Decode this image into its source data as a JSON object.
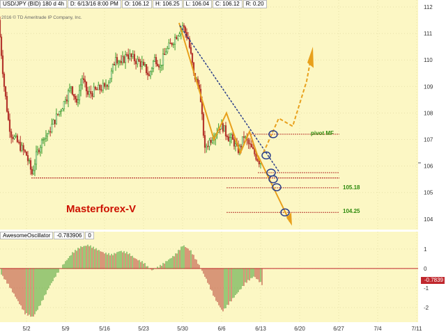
{
  "header": {
    "symbol": "USD/JPY (BID) 180 d 4h",
    "date": "D: 6/13/16 8:00 PM",
    "open": "O: 106.12",
    "high": "H: 106.25",
    "low": "L: 106.04",
    "close": "C: 106.12",
    "range": "R: 0.20"
  },
  "copyright": "2016 © TD Ameritrade IP Company, Inc.",
  "watermark": "Masterforex-V",
  "oscillator": {
    "name": "AwesomeOscillator",
    "value": "-0.783906",
    "axis_value": "-0.7839",
    "ylim": [
      -2.5,
      1.6
    ],
    "ticks": [
      "1",
      "0",
      "-1",
      "-2"
    ]
  },
  "chart_data": {
    "type": "candlestick",
    "title": "",
    "ylim": [
      103.6,
      112.2
    ],
    "price_ticks": [
      "112",
      "111",
      "110",
      "109",
      "108",
      "107",
      "106",
      "105",
      "104"
    ],
    "date_ticks": [
      "5/2",
      "5/9",
      "5/16",
      "5/23",
      "5/30",
      "6/6",
      "6/13",
      "6/20",
      "6/27",
      "7/4",
      "7/11"
    ],
    "levels": [
      {
        "label": "pivot MF",
        "value": 107.2
      },
      {
        "label": "",
        "value": 105.75
      },
      {
        "label": "",
        "value": 105.55
      },
      {
        "label": "105.18",
        "value": 105.18
      },
      {
        "label": "104.25",
        "value": 104.25
      }
    ],
    "price_path": [
      [
        "4/27",
        111.5
      ],
      [
        "4/28",
        109.0
      ],
      [
        "4/29",
        107.3
      ],
      [
        "5/2",
        106.4
      ],
      [
        "5/3",
        105.7
      ],
      [
        "5/4",
        106.6
      ],
      [
        "5/5",
        107.0
      ],
      [
        "5/6",
        107.3
      ],
      [
        "5/9",
        108.5
      ],
      [
        "5/10",
        109.0
      ],
      [
        "5/11",
        108.4
      ],
      [
        "5/12",
        109.3
      ],
      [
        "5/13",
        108.7
      ],
      [
        "5/16",
        109.0
      ],
      [
        "5/17",
        109.3
      ],
      [
        "5/18",
        110.1
      ],
      [
        "5/19",
        109.9
      ],
      [
        "5/20",
        110.2
      ],
      [
        "5/23",
        109.8
      ],
      [
        "5/24",
        109.4
      ],
      [
        "5/25",
        110.1
      ],
      [
        "5/26",
        109.8
      ],
      [
        "5/27",
        110.3
      ],
      [
        "5/30",
        111.3
      ],
      [
        "5/31",
        110.8
      ],
      [
        "6/1",
        109.5
      ],
      [
        "6/2",
        108.9
      ],
      [
        "6/3",
        106.7
      ],
      [
        "6/6",
        107.6
      ],
      [
        "6/7",
        107.1
      ],
      [
        "6/8",
        107.0
      ],
      [
        "6/9",
        106.5
      ],
      [
        "6/10",
        107.1
      ],
      [
        "6/13",
        106.1
      ]
    ],
    "oscillator_values": [
      -0.3,
      -0.9,
      -1.6,
      -2.3,
      -2.5,
      -1.8,
      -1.0,
      -0.3,
      0.3,
      0.8,
      1.1,
      1.2,
      1.0,
      0.8,
      0.7,
      0.9,
      0.8,
      0.5,
      0.3,
      -0.1,
      0.1,
      0.4,
      0.7,
      1.2,
      0.9,
      0.2,
      -0.6,
      -1.5,
      -2.2,
      -1.7,
      -1.2,
      -0.7,
      -0.4,
      -0.8
    ]
  }
}
